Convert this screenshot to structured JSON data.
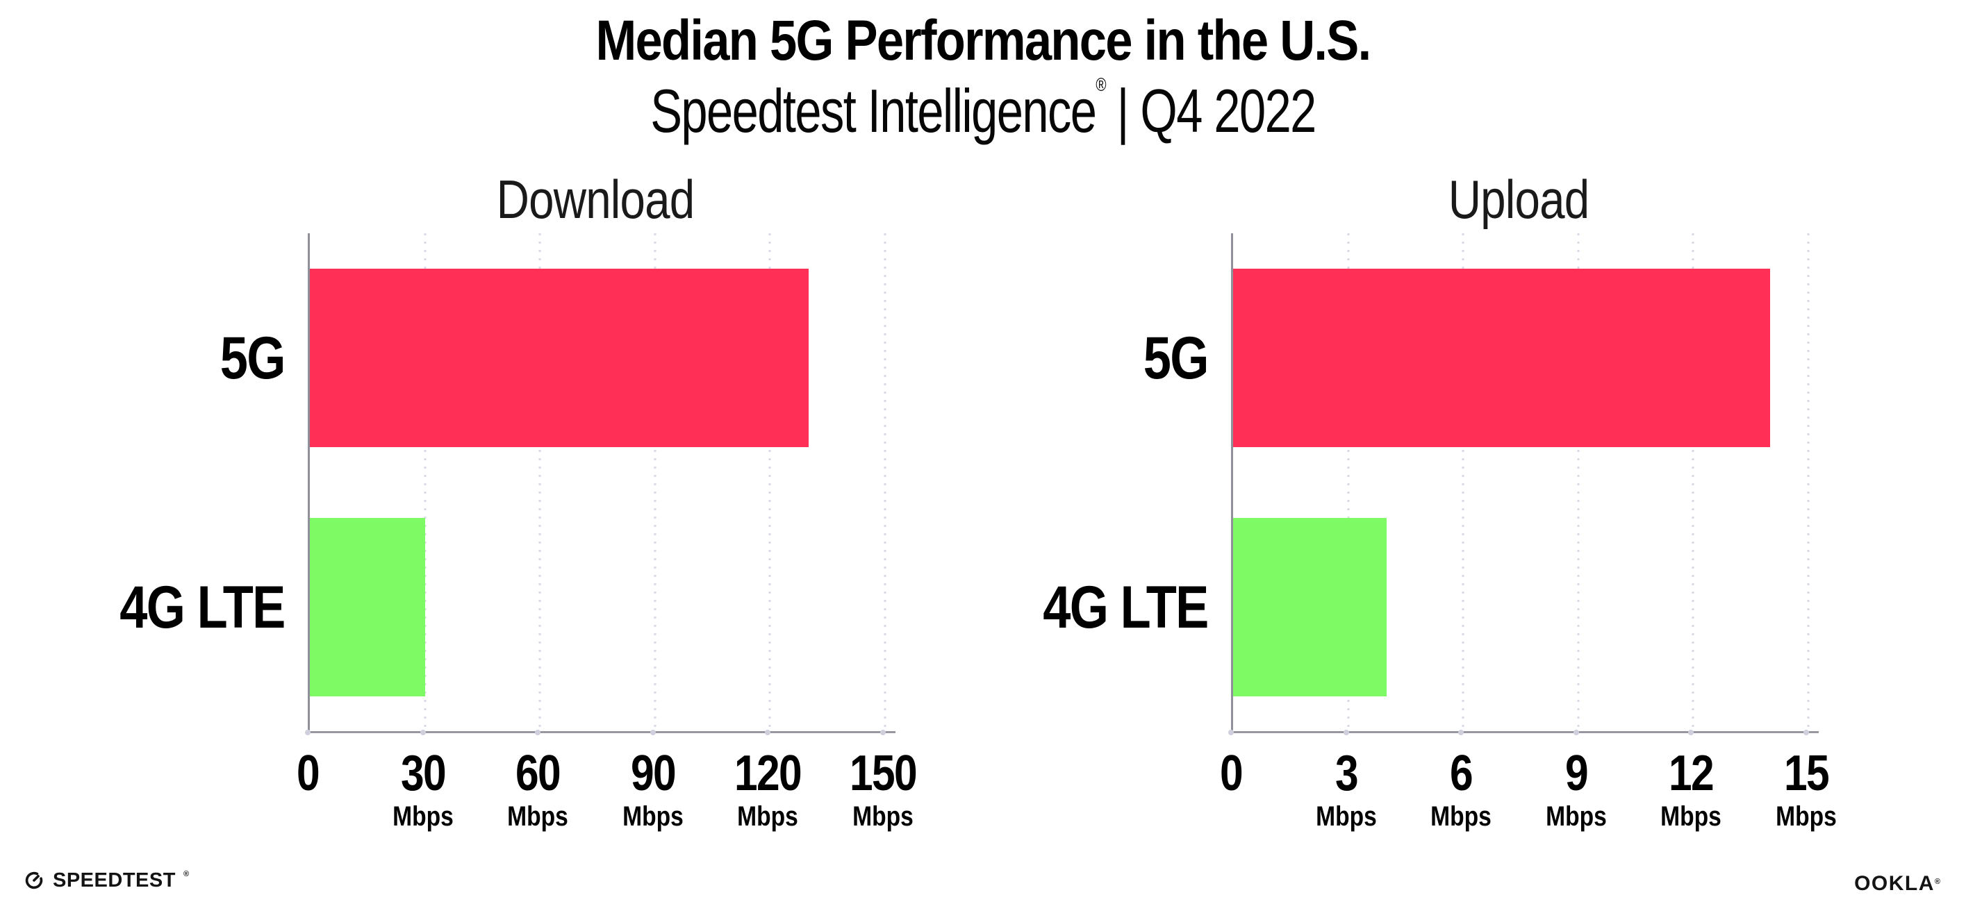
{
  "header": {
    "title": "Median 5G Performance in the U.S.",
    "subtitle_brand": "Speedtest Intelligence",
    "subtitle_reg": "®",
    "subtitle_rest": "| Q4 2022"
  },
  "footer": {
    "speedtest_label": "SPEEDTEST",
    "speedtest_reg": "®",
    "ookla_label": "OOKLA",
    "ookla_reg": "®"
  },
  "colors": {
    "bar_5g": "#FF2F56",
    "bar_4g_lte": "#7EFA65",
    "axis_line": "#97979F",
    "gridline": "#D9D9E5",
    "title_text": "#000000",
    "chart_title_text": "#1A1A1A"
  },
  "chart_data": [
    {
      "type": "bar",
      "orientation": "horizontal",
      "title": "Download",
      "categories": [
        "5G",
        "4G LTE"
      ],
      "values": [
        130,
        30
      ],
      "unit": "Mbps",
      "xlabel": "",
      "ylabel": "",
      "xlim": [
        0,
        150
      ],
      "xticks": [
        0,
        30,
        60,
        90,
        120,
        150
      ],
      "bar_colors": [
        "#FF2F56",
        "#7EFA65"
      ],
      "grid": "dotted vertical gridlines",
      "legend": "none"
    },
    {
      "type": "bar",
      "orientation": "horizontal",
      "title": "Upload",
      "categories": [
        "5G",
        "4G LTE"
      ],
      "values": [
        14,
        4
      ],
      "unit": "Mbps",
      "xlabel": "",
      "ylabel": "",
      "xlim": [
        0,
        15
      ],
      "xticks": [
        0,
        3,
        6,
        9,
        12,
        15
      ],
      "bar_colors": [
        "#FF2F56",
        "#7EFA65"
      ],
      "grid": "dotted vertical gridlines",
      "legend": "none"
    }
  ]
}
